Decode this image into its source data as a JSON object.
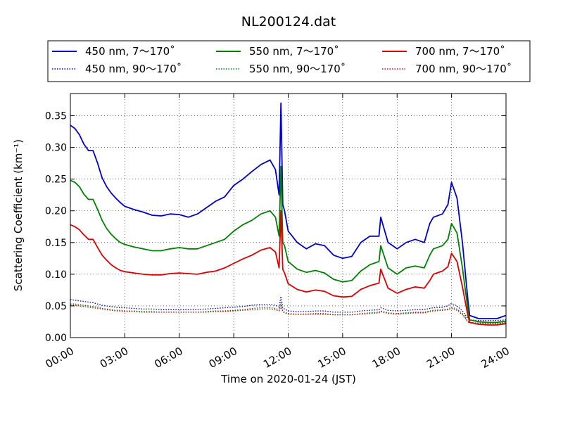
{
  "chart_data": {
    "type": "line",
    "title": "NL200124.dat",
    "xlabel": "Time on 2020-01-24 (JST)",
    "ylabel": "Scattering Coefficient (km⁻¹)",
    "xlim": [
      0,
      24
    ],
    "ylim": [
      0,
      0.385
    ],
    "x_ticks": [
      0,
      3,
      6,
      9,
      12,
      15,
      18,
      21,
      24
    ],
    "x_tick_labels": [
      "00:00",
      "03:00",
      "06:00",
      "09:00",
      "12:00",
      "15:00",
      "18:00",
      "21:00",
      "24:00"
    ],
    "y_ticks": [
      0,
      0.05,
      0.1,
      0.15,
      0.2,
      0.25,
      0.3,
      0.35
    ],
    "y_tick_labels": [
      "0.00",
      "0.05",
      "0.10",
      "0.15",
      "0.20",
      "0.25",
      "0.30",
      "0.35"
    ],
    "grid": true,
    "legend_position": "top",
    "x": [
      0,
      0.25,
      0.5,
      0.75,
      1,
      1.25,
      1.5,
      1.75,
      2,
      2.25,
      2.5,
      2.75,
      3,
      3.5,
      4,
      4.5,
      5,
      5.5,
      6,
      6.5,
      7,
      7.5,
      8,
      8.5,
      9,
      9.5,
      10,
      10.5,
      11,
      11.3,
      11.5,
      11.6,
      11.7,
      11.8,
      12,
      12.5,
      13,
      13.5,
      14,
      14.5,
      15,
      15.5,
      16,
      16.5,
      17,
      17.1,
      17.5,
      18,
      18.5,
      19,
      19.5,
      19.8,
      20,
      20.5,
      20.8,
      21,
      21.3,
      21.6,
      21.9,
      22,
      22.5,
      23,
      23.5,
      24
    ],
    "series": [
      {
        "name": "450 nm, 7～170˚",
        "color": "#0000cc",
        "style": "solid",
        "values": [
          0.335,
          0.33,
          0.32,
          0.305,
          0.295,
          0.295,
          0.275,
          0.252,
          0.238,
          0.228,
          0.22,
          0.213,
          0.207,
          0.202,
          0.198,
          0.193,
          0.192,
          0.195,
          0.194,
          0.19,
          0.195,
          0.205,
          0.215,
          0.222,
          0.24,
          0.25,
          0.262,
          0.273,
          0.28,
          0.265,
          0.225,
          0.37,
          0.21,
          0.2,
          0.168,
          0.15,
          0.14,
          0.148,
          0.145,
          0.13,
          0.125,
          0.128,
          0.15,
          0.16,
          0.16,
          0.19,
          0.15,
          0.14,
          0.15,
          0.155,
          0.15,
          0.18,
          0.19,
          0.195,
          0.21,
          0.245,
          0.22,
          0.15,
          0.06,
          0.035,
          0.03,
          0.03,
          0.03,
          0.035
        ]
      },
      {
        "name": "450 nm, 90～170˚",
        "color": "#0000cc",
        "style": "dotted",
        "values": [
          0.06,
          0.059,
          0.058,
          0.057,
          0.056,
          0.055,
          0.053,
          0.051,
          0.05,
          0.049,
          0.048,
          0.047,
          0.047,
          0.046,
          0.045,
          0.045,
          0.044,
          0.044,
          0.044,
          0.044,
          0.044,
          0.045,
          0.046,
          0.047,
          0.048,
          0.049,
          0.051,
          0.052,
          0.052,
          0.051,
          0.048,
          0.065,
          0.047,
          0.045,
          0.042,
          0.041,
          0.041,
          0.042,
          0.042,
          0.04,
          0.04,
          0.04,
          0.042,
          0.043,
          0.044,
          0.047,
          0.043,
          0.042,
          0.043,
          0.044,
          0.044,
          0.046,
          0.047,
          0.048,
          0.05,
          0.054,
          0.05,
          0.042,
          0.03,
          0.028,
          0.027,
          0.027,
          0.027,
          0.028
        ]
      },
      {
        "name": "550 nm, 7～170˚",
        "color": "#008000",
        "style": "solid",
        "values": [
          0.248,
          0.245,
          0.238,
          0.226,
          0.218,
          0.218,
          0.202,
          0.185,
          0.172,
          0.163,
          0.156,
          0.15,
          0.147,
          0.143,
          0.14,
          0.137,
          0.137,
          0.14,
          0.142,
          0.14,
          0.14,
          0.145,
          0.15,
          0.155,
          0.168,
          0.178,
          0.185,
          0.195,
          0.2,
          0.19,
          0.16,
          0.27,
          0.15,
          0.145,
          0.12,
          0.108,
          0.103,
          0.106,
          0.102,
          0.092,
          0.088,
          0.09,
          0.105,
          0.115,
          0.12,
          0.145,
          0.11,
          0.1,
          0.11,
          0.113,
          0.11,
          0.13,
          0.14,
          0.145,
          0.155,
          0.18,
          0.165,
          0.11,
          0.045,
          0.028,
          0.025,
          0.024,
          0.024,
          0.026
        ]
      },
      {
        "name": "550 nm, 90～170˚",
        "color": "#008000",
        "style": "dotted",
        "values": [
          0.053,
          0.053,
          0.052,
          0.051,
          0.05,
          0.049,
          0.048,
          0.046,
          0.045,
          0.044,
          0.043,
          0.043,
          0.042,
          0.042,
          0.041,
          0.041,
          0.04,
          0.04,
          0.04,
          0.04,
          0.04,
          0.041,
          0.042,
          0.042,
          0.043,
          0.044,
          0.046,
          0.047,
          0.047,
          0.046,
          0.044,
          0.055,
          0.042,
          0.04,
          0.038,
          0.037,
          0.037,
          0.038,
          0.038,
          0.036,
          0.036,
          0.036,
          0.038,
          0.039,
          0.04,
          0.042,
          0.039,
          0.038,
          0.039,
          0.04,
          0.04,
          0.042,
          0.043,
          0.044,
          0.045,
          0.048,
          0.045,
          0.038,
          0.026,
          0.024,
          0.023,
          0.023,
          0.023,
          0.024
        ]
      },
      {
        "name": "700 nm, 7～170˚",
        "color": "#dd0000",
        "style": "solid",
        "values": [
          0.178,
          0.175,
          0.17,
          0.162,
          0.155,
          0.155,
          0.142,
          0.13,
          0.122,
          0.115,
          0.11,
          0.106,
          0.104,
          0.102,
          0.1,
          0.099,
          0.099,
          0.101,
          0.102,
          0.101,
          0.1,
          0.103,
          0.105,
          0.11,
          0.117,
          0.124,
          0.13,
          0.138,
          0.142,
          0.135,
          0.11,
          0.2,
          0.108,
          0.102,
          0.085,
          0.076,
          0.072,
          0.075,
          0.073,
          0.066,
          0.064,
          0.065,
          0.076,
          0.082,
          0.086,
          0.108,
          0.078,
          0.07,
          0.076,
          0.08,
          0.078,
          0.09,
          0.1,
          0.105,
          0.112,
          0.133,
          0.12,
          0.08,
          0.035,
          0.024,
          0.021,
          0.02,
          0.02,
          0.022
        ]
      },
      {
        "name": "700 nm, 90～170˚",
        "color": "#dd0000",
        "style": "dotted",
        "values": [
          0.051,
          0.051,
          0.05,
          0.049,
          0.048,
          0.047,
          0.046,
          0.045,
          0.044,
          0.043,
          0.042,
          0.042,
          0.041,
          0.041,
          0.04,
          0.04,
          0.04,
          0.04,
          0.04,
          0.04,
          0.04,
          0.04,
          0.041,
          0.041,
          0.042,
          0.043,
          0.044,
          0.045,
          0.045,
          0.044,
          0.042,
          0.05,
          0.041,
          0.039,
          0.037,
          0.037,
          0.037,
          0.037,
          0.037,
          0.036,
          0.036,
          0.036,
          0.037,
          0.038,
          0.039,
          0.041,
          0.038,
          0.037,
          0.038,
          0.039,
          0.039,
          0.041,
          0.042,
          0.043,
          0.044,
          0.046,
          0.043,
          0.036,
          0.025,
          0.023,
          0.022,
          0.022,
          0.022,
          0.023
        ]
      }
    ]
  }
}
